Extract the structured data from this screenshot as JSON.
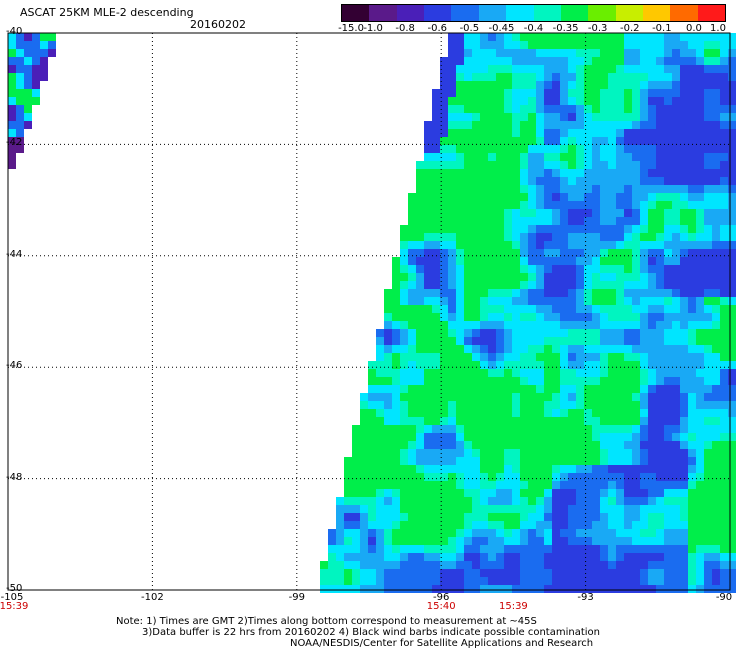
{
  "header": {
    "title": "ASCAT 25KM MLE-2 descending",
    "date": "20160202"
  },
  "colorbar": {
    "labels": [
      "-15.0",
      "-1.0",
      "-0.8",
      "-0.6",
      "-0.5",
      "-0.45",
      "-0.4",
      "-0.35",
      "-0.3",
      "-0.2",
      "-0.1",
      "0.0",
      "1.0"
    ],
    "colors": [
      "#330033",
      "#5a1a8a",
      "#4a1fb8",
      "#2b3ce0",
      "#1a6cf0",
      "#19a9f5",
      "#00e5ff",
      "#00f5c0",
      "#00ee4a",
      "#6aee00",
      "#c8ee00",
      "#ffc800",
      "#ff6a00",
      "#ff1a1a"
    ]
  },
  "axes": {
    "lat_labels": [
      "-40",
      "-42",
      "-44",
      "-46",
      "-48",
      "-50"
    ],
    "lat_values": [
      -40,
      -42,
      -44,
      -46,
      -48,
      -50
    ],
    "lon_labels": [
      "-105",
      "-102",
      "-99",
      "-96",
      "-93",
      "-90"
    ],
    "lon_values": [
      -105,
      -102,
      -99,
      -96,
      -93,
      -90
    ],
    "lon_range": [
      -105,
      -90
    ],
    "lat_range": [
      -40,
      -50
    ],
    "grid": true
  },
  "time_labels": [
    {
      "text": "15:39",
      "lon": -105
    },
    {
      "text": "15:40",
      "lon": -96
    },
    {
      "text": "15:39",
      "lon": -94.5
    }
  ],
  "notes": [
    "Note: 1) Times are GMT 2)Times along bottom correspond to measurement at ~45S",
    "3)Data buffer is 22 hrs from 20160202 4) Black wind barbs indicate possible contamination",
    "NOAA/NESDIS/Center for Satellite Applications and Research"
  ]
}
